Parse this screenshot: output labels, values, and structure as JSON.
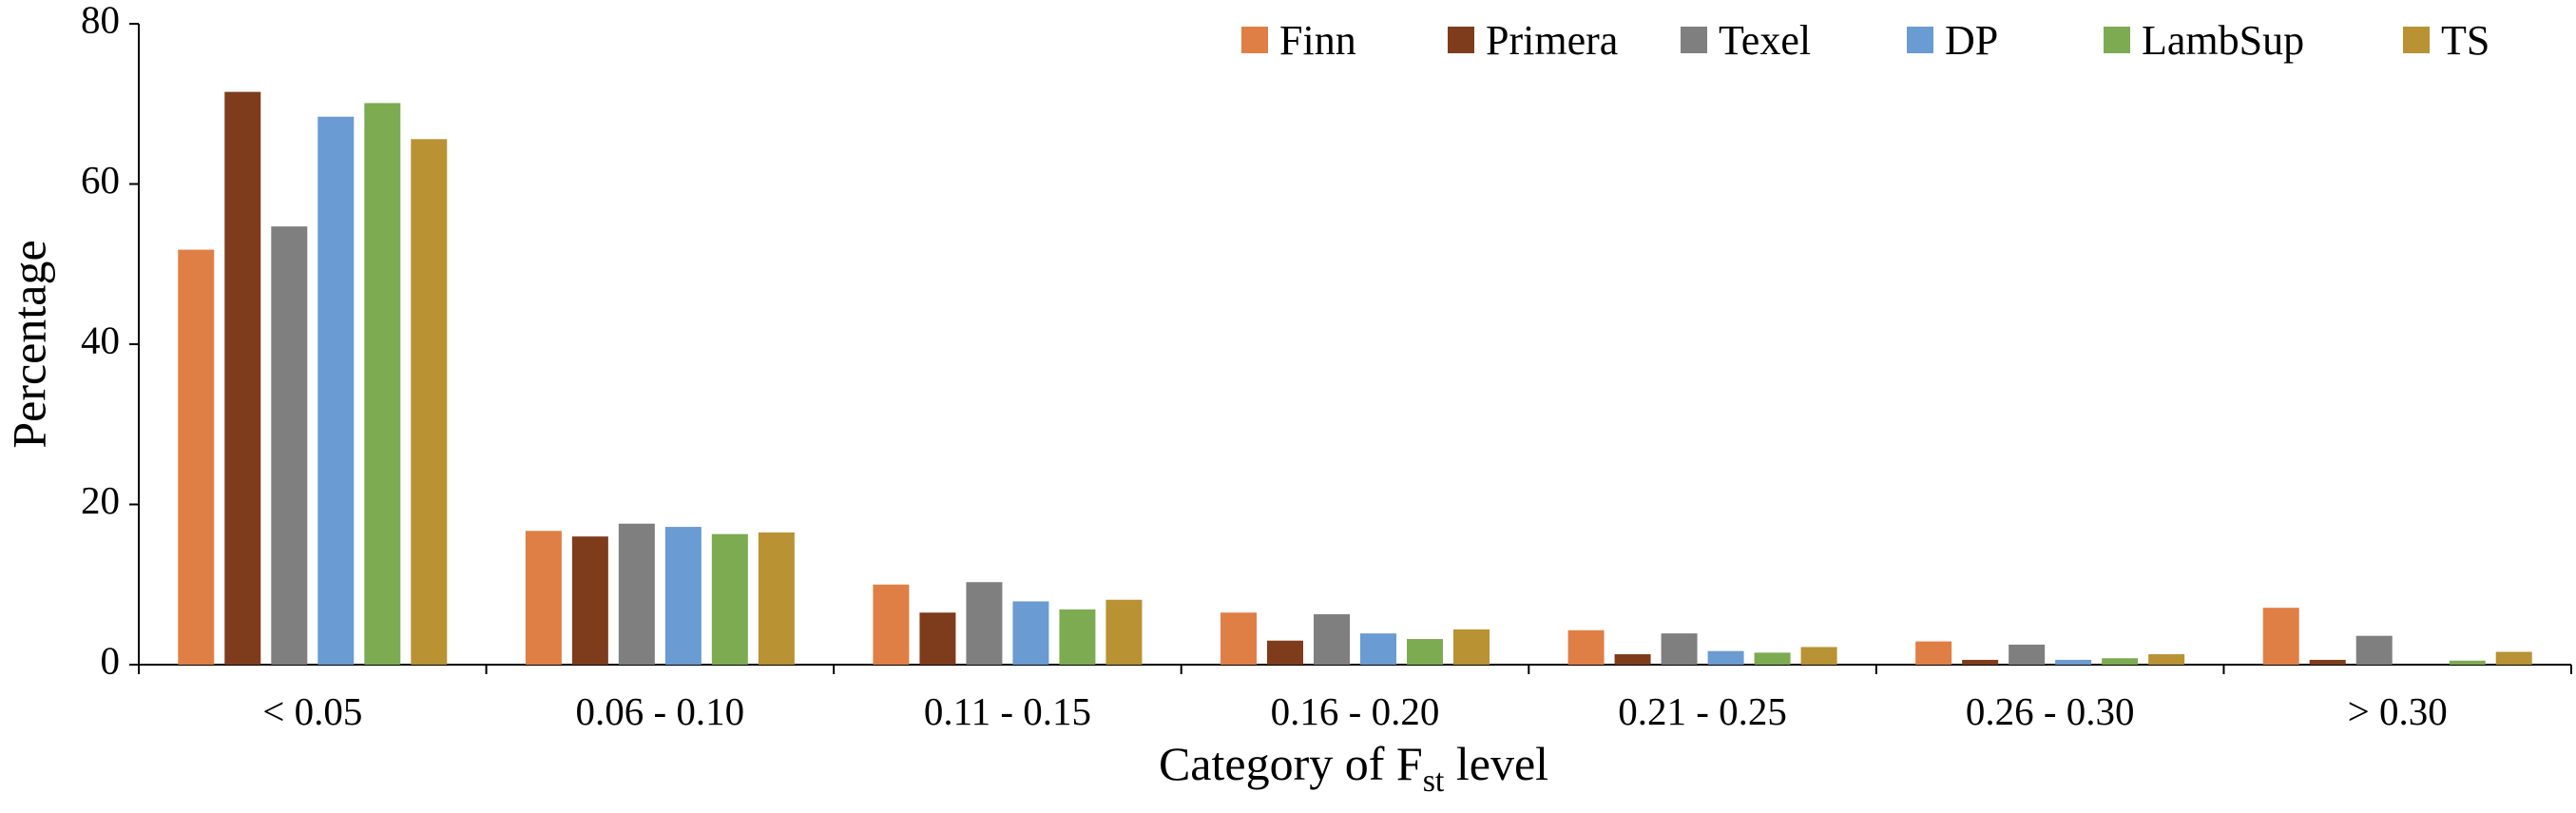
{
  "chart_data": {
    "type": "bar",
    "title": "",
    "xlabel": {
      "main": "Category of F",
      "subscript": "st",
      "suffix": " level"
    },
    "ylabel": "Percentage",
    "ylim": [
      0,
      80
    ],
    "yticks": [
      "0",
      "20",
      "40",
      "60",
      "80"
    ],
    "grid": false,
    "legend": "top-right",
    "categories": [
      "< 0.05",
      "0.06 - 0.10",
      "0.11 - 0.15",
      "0.16 - 0.20",
      "0.21 - 0.25",
      "0.26 - 0.30",
      "> 0.30"
    ],
    "series": [
      {
        "name": "Finn",
        "color": "#E07F45",
        "values": [
          51.8,
          16.7,
          10.0,
          6.5,
          4.3,
          2.9,
          7.1
        ]
      },
      {
        "name": "Primera",
        "color": "#7E3C1C",
        "values": [
          71.5,
          16.0,
          6.5,
          3.0,
          1.3,
          0.6,
          0.6
        ]
      },
      {
        "name": "Texel",
        "color": "#7F7F7F",
        "values": [
          54.7,
          17.6,
          10.3,
          6.3,
          3.9,
          2.5,
          3.6
        ]
      },
      {
        "name": "DP",
        "color": "#6A9BD2",
        "values": [
          68.4,
          17.2,
          7.9,
          3.9,
          1.7,
          0.6,
          0.0
        ]
      },
      {
        "name": "LambSup",
        "color": "#7DAB52",
        "values": [
          70.1,
          16.3,
          6.9,
          3.2,
          1.5,
          0.8,
          0.5
        ]
      },
      {
        "name": "TS",
        "color": "#B89233",
        "values": [
          65.6,
          16.5,
          8.1,
          4.4,
          2.2,
          1.3,
          1.6
        ]
      }
    ]
  }
}
